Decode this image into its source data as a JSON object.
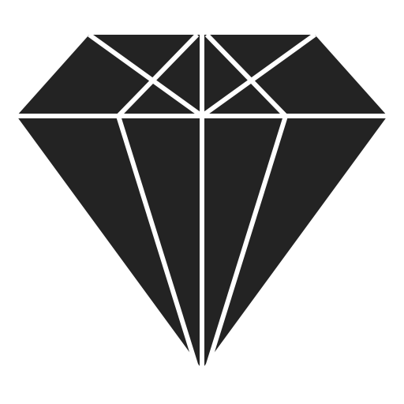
{
  "icon": {
    "name": "diamond-icon",
    "fill_color": "#232323",
    "line_color": "#ffffff"
  }
}
